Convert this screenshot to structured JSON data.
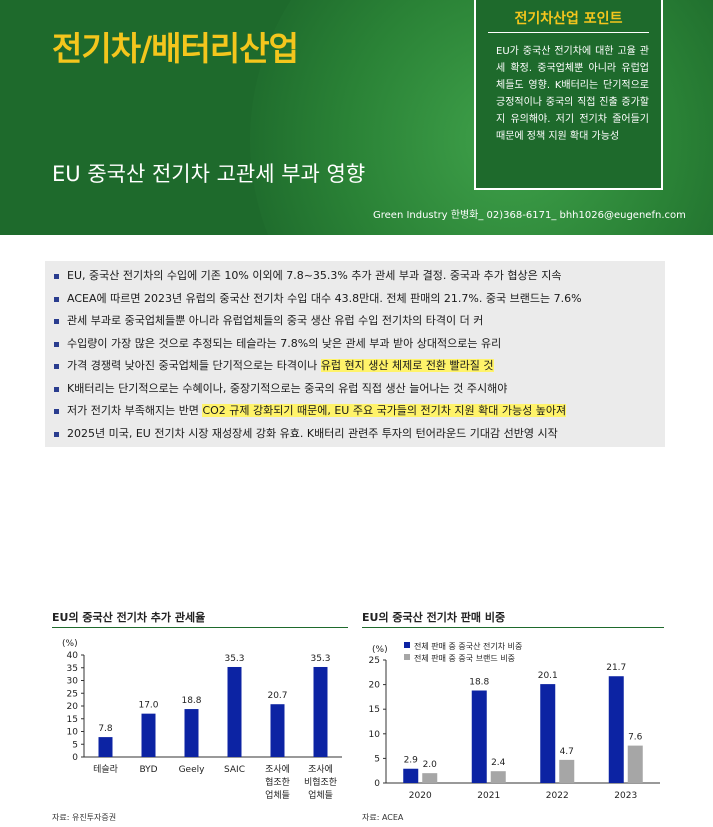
{
  "header": {
    "title": "전기차/배터리산업",
    "subtitle": "EU 중국산 전기차 고관세 부과 영향",
    "author": "Green Industry 한병화_ 02)368-6171_ bhh1026@eugenefn.com"
  },
  "point_box": {
    "title": "전기차산업 포인트",
    "body": "EU가 중국산 전기차에 대한 고율 관세 확정. 중국업체뿐 아니라 유럽업체들도 영향. K배터리는 단기적으로 긍정적이나 중국의 직접 진출 증가할지 유의해야. 저기 전기차 줄어들기 때문에 정책 지원 확대 가능성"
  },
  "summary": [
    {
      "pre": "EU, 중국산 전기차의 수입에 기존 10% 이외에 7.8~35.3% 추가 관세 부과 결정. 중국과 추가 협상은 지속",
      "hl": "",
      "post": ""
    },
    {
      "pre": "ACEA에 따르면 2023년 유럽의 중국산 전기차 수입 대수 43.8만대. 전체 판매의 21.7%. 중국 브랜드는 7.6%",
      "hl": "",
      "post": ""
    },
    {
      "pre": "관세 부과로 중국업체들뿐 아니라 유럽업체들의 중국 생산 유럽 수입 전기차의 타격이 더 커",
      "hl": "",
      "post": ""
    },
    {
      "pre": "수입량이 가장 많은 것으로 추정되는 테슬라는 7.8%의 낮은 관세 부과 받아 상대적으로는 유리",
      "hl": "",
      "post": ""
    },
    {
      "pre": "가격 경쟁력 낮아진 중국업체들 단기적으로는 타격이나 ",
      "hl": "유럽 현지 생산 체제로 전환 빨라질 것",
      "post": ""
    },
    {
      "pre": "K배터리는 단기적으로는 수혜이나, 중장기적으로는 중국의 유럽 직접 생산 늘어나는 것 주시해야",
      "hl": "",
      "post": ""
    },
    {
      "pre": "저가 전기차 부족해지는 반면 ",
      "hl": "CO2 규제 강화되기 때문에, EU 주요 국가들의 전기차 지원 확대 가능성 높아져",
      "post": ""
    },
    {
      "pre": "2025년 미국, EU 전기차 시장 재성장세 강화 유효. K배터리 관련주 투자의 턴어라운드 기대감 선반영 시작",
      "hl": "",
      "post": ""
    }
  ],
  "left_chart": {
    "title": "EU의 중국산 전기차 추가 관세율",
    "source": "자료: 유진투자증권",
    "colors": {
      "bar": "#0c23a3",
      "title_line": "#1e6a2c"
    },
    "chart_data": {
      "type": "bar",
      "ylabel": "(%)",
      "ylim": [
        0,
        40
      ],
      "yticks": [
        0,
        5,
        10,
        15,
        20,
        25,
        30,
        35,
        40
      ],
      "categories": [
        [
          "테슬라"
        ],
        [
          "BYD"
        ],
        [
          "Geely"
        ],
        [
          "SAIC"
        ],
        [
          "조사에",
          "협조한",
          "업체들"
        ],
        [
          "조사에",
          "비협조한",
          "업체들"
        ]
      ],
      "values": [
        7.8,
        17.0,
        18.8,
        35.3,
        20.7,
        35.3
      ],
      "value_labels": [
        "7.8",
        "17.0",
        "18.8",
        "35.3",
        "20.7",
        "35.3"
      ]
    }
  },
  "right_chart": {
    "title": "EU의 중국산 전기차 판매 비중",
    "source": "자료: ACEA",
    "colors": {
      "series1": "#0c23a3",
      "series2": "#a6a6a6"
    },
    "chart_data": {
      "type": "bar",
      "ylabel": "(%)",
      "ylim": [
        0,
        25
      ],
      "yticks": [
        0,
        5,
        10,
        15,
        20,
        25
      ],
      "categories": [
        "2020",
        "2021",
        "2022",
        "2023"
      ],
      "series": [
        {
          "name": "전체 판매 중 중국산 전기차 비중",
          "values": [
            2.9,
            18.8,
            20.1,
            21.7
          ],
          "labels": [
            "2.9",
            "18.8",
            "20.1",
            "21.7"
          ]
        },
        {
          "name": "전체 판매 중 중국 브랜드 비중",
          "values": [
            2.0,
            2.4,
            4.7,
            7.6
          ],
          "labels": [
            "2.0",
            "2.4",
            "4.7",
            "7.6"
          ]
        }
      ]
    }
  }
}
